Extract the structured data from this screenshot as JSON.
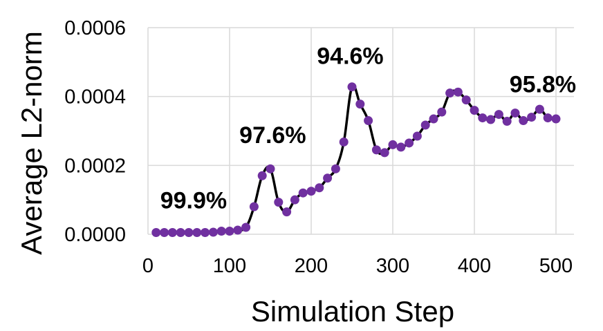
{
  "chart_data": {
    "type": "line",
    "xlabel": "Simulation Step",
    "ylabel": "Average L2-norm",
    "xlim": [
      0,
      500
    ],
    "ylim": [
      0,
      0.0006
    ],
    "x_ticks": [
      "0",
      "100",
      "200",
      "300",
      "400",
      "500"
    ],
    "y_ticks": [
      "0.0000",
      "0.0002",
      "0.0004",
      "0.0006"
    ],
    "grid": true,
    "line_color": "#000000",
    "marker_color": "#7030a0",
    "series": [
      {
        "x": [
          10,
          20,
          30,
          40,
          50,
          60,
          70,
          80,
          90,
          100,
          110,
          120,
          130,
          140,
          150,
          160,
          170,
          180,
          190,
          200,
          210,
          220,
          230,
          240,
          250,
          260,
          270,
          280,
          290,
          300,
          310,
          320,
          330,
          340,
          350,
          360,
          370,
          380,
          390,
          400,
          410,
          420,
          430,
          440,
          450,
          460,
          470,
          480,
          490,
          500
        ],
        "y": [
          5e-06,
          5e-06,
          5e-06,
          5e-06,
          5e-06,
          5e-06,
          5e-06,
          6e-06,
          9e-06,
          9e-06,
          1.2e-05,
          2e-05,
          8e-05,
          0.00017,
          0.00019,
          9.3e-05,
          6.5e-05,
          0.0001,
          0.00012,
          0.000125,
          0.000135,
          0.000163,
          0.00019,
          0.000268,
          0.000428,
          0.000378,
          0.00033,
          0.000245,
          0.000237,
          0.00026,
          0.000253,
          0.000265,
          0.000285,
          0.000317,
          0.000335,
          0.000355,
          0.00041,
          0.000413,
          0.00039,
          0.00036,
          0.000338,
          0.000333,
          0.000348,
          0.000328,
          0.000352,
          0.00033,
          0.00034,
          0.000363,
          0.000338,
          0.000335
        ]
      }
    ],
    "annotations": [
      {
        "text": "99.9%",
        "x": 15,
        "y": 7.5e-05
      },
      {
        "text": "97.6%",
        "x": 112,
        "y": 0.000265
      },
      {
        "text": "94.6%",
        "x": 207,
        "y": 0.000495
      },
      {
        "text": "95.8%",
        "x": 443,
        "y": 0.000412
      }
    ]
  }
}
